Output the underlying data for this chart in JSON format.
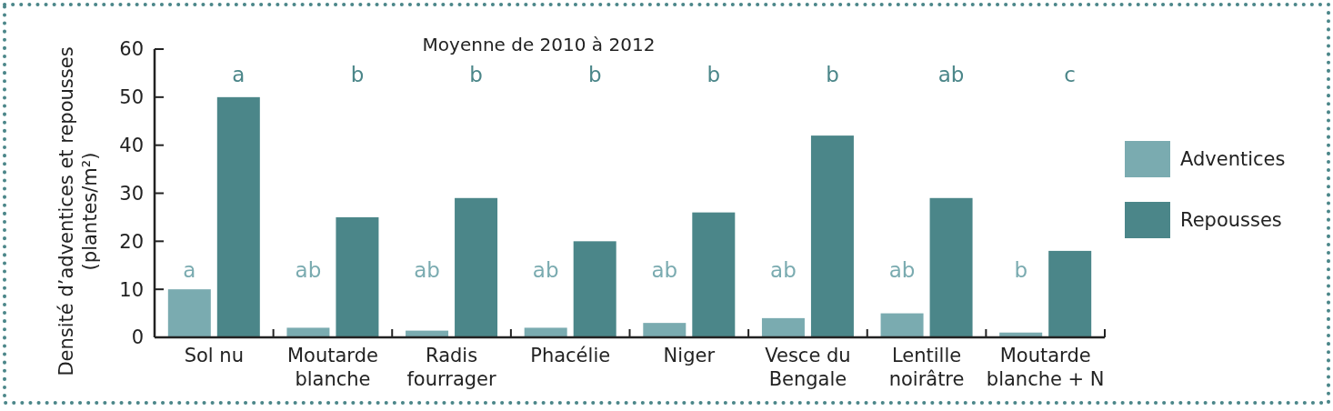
{
  "chart_data": {
    "type": "bar",
    "title": "Moyenne de 2010 à 2012",
    "ylabel": "Densité d’adventices et repousses\n(plantes/m²)",
    "categories": [
      "Sol nu",
      "Moutarde\nblanche",
      "Radis\nfourrager",
      "Phacélie",
      "Niger",
      "Vesce du\nBengale",
      "Lentille\nnoirâtre",
      "Moutarde\nblanche + N"
    ],
    "series": [
      {
        "name": "Adventices",
        "color": "#7aabb0",
        "values": [
          10,
          2,
          1.4,
          2,
          3,
          4,
          5,
          1
        ]
      },
      {
        "name": "Repousses",
        "color": "#4b8689",
        "values": [
          50,
          25,
          29,
          20,
          26,
          42,
          29,
          18
        ]
      }
    ],
    "ylim": [
      0,
      60
    ],
    "yticks": [
      0,
      10,
      20,
      30,
      40,
      50,
      60
    ],
    "legend": "right",
    "annotations": [
      "a",
      "a",
      "ab",
      "b",
      "ab",
      "b",
      "ab",
      "b",
      "ab",
      "b",
      "ab",
      "b",
      "ab",
      "ab",
      "b",
      "c"
    ]
  }
}
